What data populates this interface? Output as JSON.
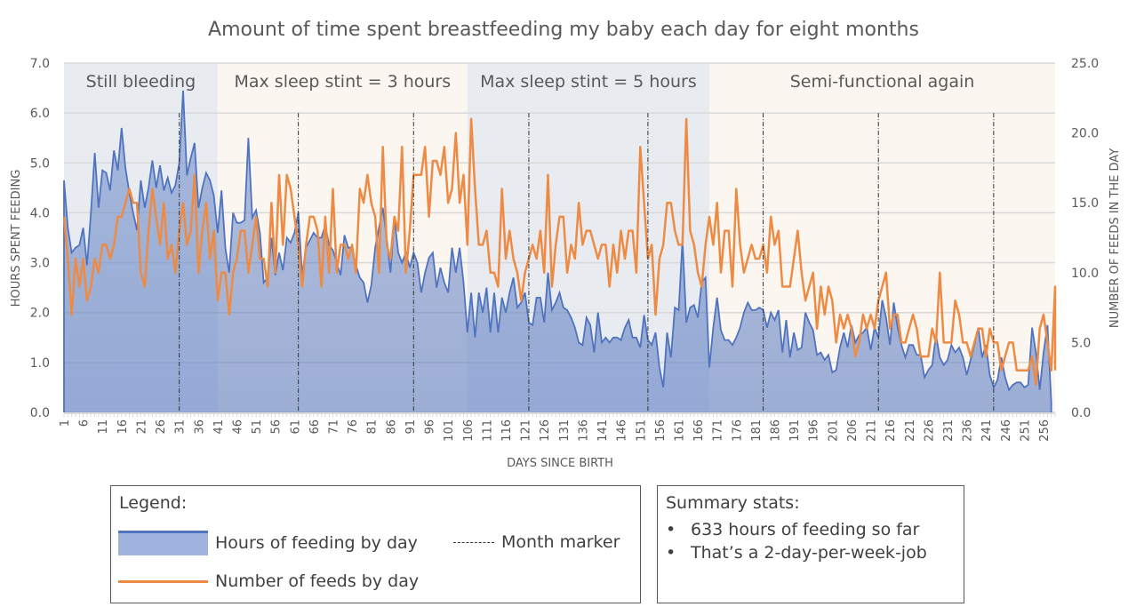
{
  "chart_data": {
    "type": "area",
    "title": "Amount of time spent breastfeeding my baby each day for eight months",
    "xlabel": "DAYS SINCE BIRTH",
    "ylabel": "HOURS SPENT FEEDING",
    "y2label": "NUMBER OF FEEDS IN THE DAY",
    "xlim": [
      1,
      259
    ],
    "ylim": [
      0,
      7
    ],
    "y2lim": [
      0,
      25
    ],
    "yticks": [
      "0.0",
      "1.0",
      "2.0",
      "3.0",
      "4.0",
      "5.0",
      "6.0",
      "7.0"
    ],
    "y2ticks": [
      "0.0",
      "5.0",
      "10.0",
      "15.0",
      "20.0",
      "25.0"
    ],
    "xtick_start": 1,
    "xtick_step": 5,
    "grid": true,
    "phases": [
      {
        "label": "Still bleeding",
        "start": 1,
        "end": 41,
        "color": "#e8ebf0"
      },
      {
        "label": "Max sleep stint = 3 hours",
        "start": 41,
        "end": 106,
        "color": "#fcf6f1"
      },
      {
        "label": "Max sleep stint = 5 hours",
        "start": 106,
        "end": 169,
        "color": "#e8ebf0"
      },
      {
        "label": "Semi-functional again",
        "start": 169,
        "end": 259,
        "color": "#fcf6f1"
      }
    ],
    "month_markers": [
      31,
      62,
      92,
      122,
      153,
      183,
      213,
      243
    ],
    "series": [
      {
        "name": "Hours of feeding by day",
        "axis": "left",
        "kind": "area",
        "color": "#4f73be",
        "values": [
          4.65,
          3.7,
          3.2,
          3.3,
          3.35,
          3.7,
          2.95,
          4.0,
          5.2,
          4.1,
          4.85,
          4.8,
          4.45,
          5.25,
          4.85,
          5.7,
          4.9,
          4.4,
          4.0,
          3.65,
          4.65,
          4.1,
          4.5,
          5.05,
          4.5,
          4.95,
          4.45,
          4.7,
          4.4,
          4.55,
          5.0,
          6.45,
          4.75,
          5.1,
          5.4,
          4.1,
          4.5,
          4.8,
          4.65,
          4.35,
          3.6,
          4.45,
          3.3,
          2.8,
          4.0,
          3.8,
          3.8,
          3.85,
          5.5,
          3.9,
          4.05,
          3.6,
          2.6,
          2.7,
          3.5,
          2.75,
          3.2,
          2.85,
          3.5,
          3.4,
          3.6,
          4.0,
          2.75,
          3.3,
          3.45,
          3.6,
          3.5,
          3.5,
          3.75,
          3.35,
          3.25,
          3.0,
          2.75,
          3.55,
          3.3,
          3.3,
          2.95,
          2.7,
          2.6,
          2.2,
          2.55,
          3.3,
          3.7,
          4.1,
          3.5,
          2.8,
          3.9,
          3.2,
          3.0,
          3.2,
          2.9,
          3.2,
          3.0,
          2.4,
          2.8,
          3.1,
          3.2,
          2.5,
          2.9,
          2.6,
          2.4,
          3.3,
          2.8,
          3.3,
          2.6,
          1.6,
          2.4,
          1.5,
          2.4,
          2.0,
          2.5,
          1.6,
          2.4,
          1.6,
          2.3,
          2.0,
          2.4,
          2.7,
          2.1,
          2.2,
          2.4,
          1.8,
          1.75,
          2.3,
          2.3,
          1.8,
          2.8,
          2.05,
          2.2,
          2.4,
          2.1,
          2.05,
          1.9,
          1.7,
          1.4,
          1.35,
          1.9,
          1.75,
          1.2,
          2.0,
          1.4,
          1.5,
          1.4,
          1.5,
          1.5,
          1.45,
          1.7,
          1.85,
          1.5,
          1.5,
          1.3,
          1.95,
          1.45,
          1.35,
          1.6,
          0.9,
          0.5,
          1.6,
          1.1,
          2.1,
          2.05,
          3.45,
          1.8,
          2.1,
          2.15,
          1.9,
          2.6,
          2.7,
          0.9,
          1.7,
          2.3,
          1.65,
          1.45,
          1.45,
          1.35,
          1.5,
          1.7,
          2.0,
          2.2,
          2.05,
          2.05,
          2.1,
          2.05,
          1.7,
          2.0,
          1.85,
          2.05,
          1.2,
          1.85,
          1.1,
          1.6,
          1.25,
          1.3,
          2.0,
          1.8,
          1.65,
          1.15,
          1.2,
          1.05,
          1.15,
          0.8,
          0.85,
          1.3,
          1.6,
          1.3,
          1.75,
          1.4,
          1.55,
          1.6,
          1.7,
          1.25,
          1.7,
          1.5,
          2.25,
          1.9,
          1.35,
          2.2,
          1.7,
          1.35,
          1.1,
          1.35,
          1.35,
          1.15,
          1.15,
          0.7,
          0.85,
          0.95,
          1.55,
          1.1,
          0.95,
          1.05,
          1.35,
          1.2,
          1.3,
          1.1,
          0.75,
          1.05,
          1.35,
          1.7,
          1.1,
          1.35,
          0.75,
          0.5,
          0.65,
          1.1,
          0.7,
          0.45,
          0.55,
          0.6,
          0.6,
          0.5,
          0.55,
          1.7,
          1.2,
          0.45,
          1.2,
          1.75,
          0.2
        ]
      },
      {
        "name": "Number of feeds by day",
        "axis": "right",
        "kind": "line",
        "color": "#ed8b45",
        "values": [
          14,
          11,
          7,
          11,
          9,
          11,
          8,
          9,
          11,
          10,
          12,
          12,
          11,
          12,
          14,
          14,
          15,
          16,
          15,
          15,
          10,
          9,
          13,
          16,
          14,
          12,
          15,
          11,
          12,
          10,
          13,
          15,
          12,
          13,
          17,
          10,
          13,
          15,
          11,
          13,
          8,
          10,
          10,
          7,
          10,
          11,
          13,
          13,
          10,
          12,
          14,
          11,
          11,
          9,
          15,
          10,
          17,
          12,
          17,
          16,
          14,
          12,
          9,
          12,
          14,
          14,
          13,
          9,
          14,
          10,
          16,
          10,
          12,
          12,
          11,
          12,
          10,
          16,
          15,
          17,
          15,
          14,
          10,
          19,
          12,
          11,
          14,
          13,
          19,
          10,
          13,
          17,
          17,
          17,
          19,
          14,
          18,
          18,
          17,
          19,
          15,
          16,
          20,
          15,
          17,
          12,
          21,
          16,
          12,
          12,
          13,
          10,
          10,
          9,
          16,
          11,
          13,
          11,
          10,
          8,
          10,
          11,
          12,
          11,
          13,
          10,
          17,
          9,
          12,
          14,
          14,
          10,
          12,
          11,
          15,
          12,
          13,
          13,
          12,
          11,
          12,
          12,
          9,
          12,
          10,
          13,
          11,
          13,
          13,
          10,
          19,
          15,
          11,
          12,
          7,
          11,
          12,
          15,
          15,
          13,
          12,
          12,
          21,
          13,
          12,
          10,
          9,
          12,
          14,
          12,
          15,
          10,
          13,
          13,
          9,
          16,
          12,
          10,
          11,
          12,
          11,
          11,
          12,
          10,
          14,
          12,
          13,
          9,
          9,
          9,
          11,
          13,
          10,
          8,
          9,
          10,
          6,
          9,
          7,
          9,
          8,
          5,
          7,
          6,
          7,
          6,
          4,
          5,
          7,
          6,
          7,
          6,
          8,
          9,
          10,
          6,
          7,
          7,
          5,
          5,
          6,
          7,
          6,
          4,
          4,
          4,
          6,
          5,
          10,
          5,
          5,
          5,
          8,
          7,
          5,
          5,
          4,
          5,
          6,
          6,
          4,
          6,
          5,
          5,
          3,
          4,
          5,
          5,
          3,
          3,
          3,
          3,
          4,
          2,
          6,
          7,
          5,
          3,
          9,
          3
        ]
      }
    ]
  },
  "legend": {
    "title": "Legend:",
    "area_label": "Hours of feeding by day",
    "line_label": "Number of feeds by day",
    "marker_label": "Month marker"
  },
  "summary": {
    "title": "Summary stats:",
    "items": [
      "633 hours of feeding so far",
      "That’s a 2-day-per-week-job"
    ]
  }
}
